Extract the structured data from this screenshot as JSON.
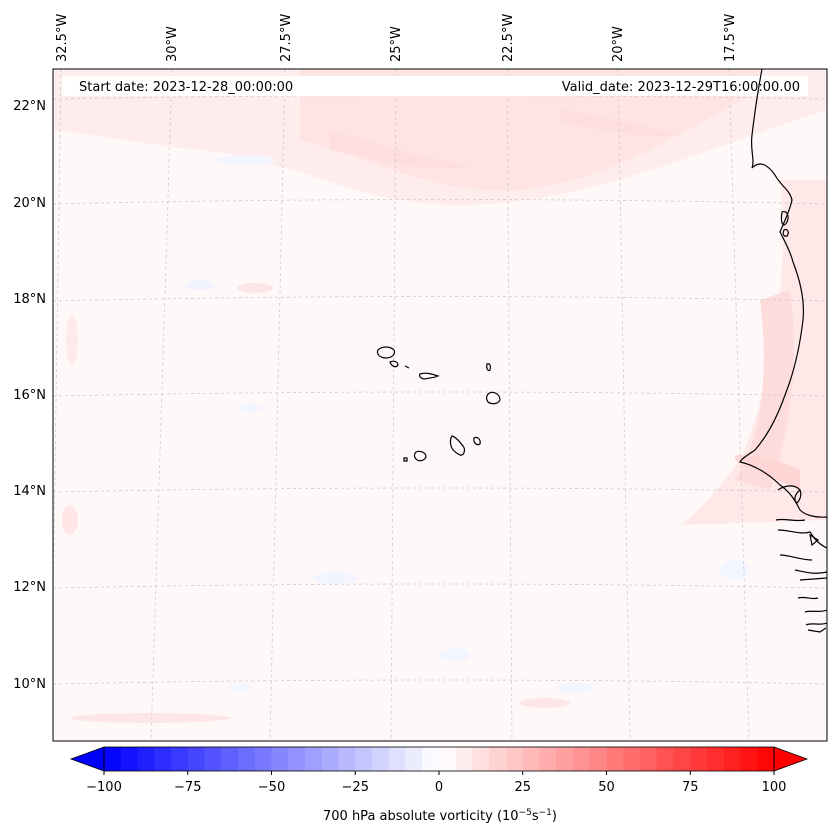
{
  "header": {
    "start_date": "Start date: 2023-12-28_00:00:00",
    "valid_date": "Valid_date: 2023-12-29T16:00:00.00"
  },
  "longitude_labels": [
    "32.5°W",
    "30°W",
    "27.5°W",
    "25°W",
    "22.5°W",
    "20°W",
    "17.5°W"
  ],
  "latitude_labels": [
    "22°N",
    "20°N",
    "18°N",
    "16°N",
    "14°N",
    "12°N",
    "10°N"
  ],
  "colorbar": {
    "ticks": [
      "−100",
      "−75",
      "−50",
      "−25",
      "0",
      "25",
      "50",
      "75",
      "100"
    ],
    "label_main": "700 hPa absolute vorticity (10",
    "label_exp1": "−5",
    "label_mid": "s",
    "label_exp2": "−1",
    "label_end": ")",
    "min": -100,
    "max": 100,
    "colors": {
      "low": "#0000ff",
      "mid": "#ffffff",
      "high": "#ff0000"
    }
  },
  "map": {
    "region": "Cape Verde Islands and West African coast",
    "field_description": "mostly near-zero vorticity, faint positive band in north and along coast"
  }
}
